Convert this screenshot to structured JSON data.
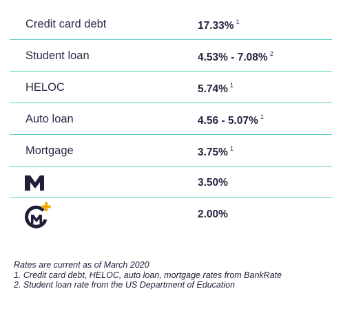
{
  "rows": [
    {
      "label": "Credit card debt",
      "rate": "17.33%",
      "note": "1"
    },
    {
      "label": "Student loan",
      "rate": "4.53% - 7.08%",
      "note": "2"
    },
    {
      "label": "HELOC",
      "rate": "5.74%",
      "note": "1"
    },
    {
      "label": "Auto loan",
      "rate": "4.56 - 5.07%",
      "note": "1"
    },
    {
      "label": "Mortgage",
      "rate": "3.75%",
      "note": "1"
    },
    {
      "logo": "m1-logo-icon",
      "rate": "3.50%"
    },
    {
      "logo": "m1-plus-logo-icon",
      "rate": "2.00%"
    }
  ],
  "colors": {
    "divider": "#5fd3c4",
    "logo_dark": "#1f1f3a",
    "logo_plus": "#f2a900"
  },
  "footnotes": [
    "Rates are current as of March 2020",
    "1. Credit card debt, HELOC, auto loan, mortgage rates from BankRate",
    "2. Student loan rate from the US Department of Education"
  ]
}
